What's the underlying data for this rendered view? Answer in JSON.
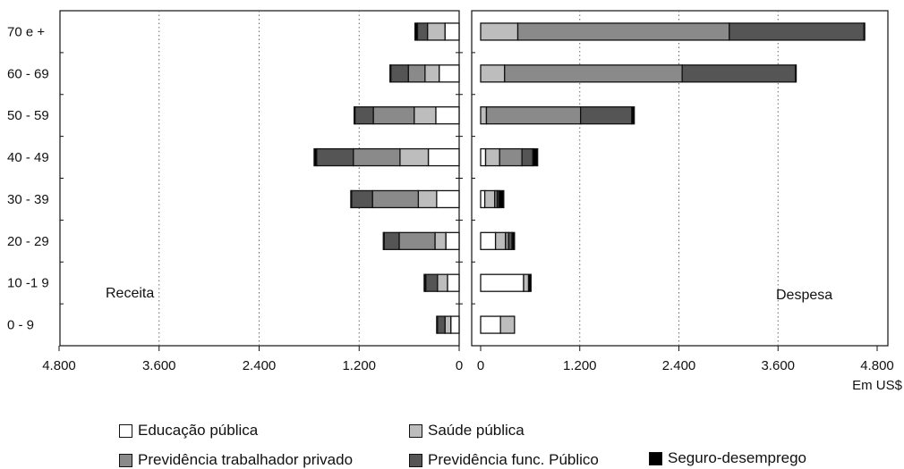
{
  "chart_data": {
    "type": "bar",
    "orientation": "horizontal",
    "stacked": true,
    "layout": "population pyramid (two mirrored panels)",
    "categories": [
      "70 e +",
      "60 - 69",
      "50 - 59",
      "40 - 49",
      "30 - 39",
      "20 - 29",
      "10 -1 9",
      "0 - 9"
    ],
    "panels": [
      {
        "label": "Receita",
        "direction": "leftward",
        "xlim": [
          0,
          4800
        ],
        "tick_labels": [
          "4.800",
          "3.600",
          "2.400",
          "1.200",
          "0"
        ],
        "series": [
          {
            "name": "Educação pública",
            "values": [
              170,
              240,
              280,
              370,
              270,
              160,
              140,
              100
            ]
          },
          {
            "name": "Saúde pública",
            "values": [
              210,
              170,
              260,
              340,
              220,
              130,
              120,
              70
            ]
          },
          {
            "name": "Previdência trabalhador privado",
            "values": [
              0,
              200,
              490,
              560,
              550,
              430,
              0,
              0
            ]
          },
          {
            "name": "Previdência func. Público",
            "values": [
              120,
              210,
              220,
              440,
              250,
              180,
              140,
              90
            ]
          },
          {
            "name": "Seguro-desemprego",
            "values": [
              30,
              10,
              10,
              30,
              10,
              10,
              20,
              10
            ]
          }
        ]
      },
      {
        "label": "Despesa",
        "direction": "rightward",
        "xlim": [
          0,
          4800
        ],
        "tick_labels": [
          "0",
          "1.200",
          "2.400",
          "3.600",
          "4.800"
        ],
        "unit_label": "Em US$",
        "series": [
          {
            "name": "Educação pública",
            "values": [
              0,
              0,
              0,
              60,
              50,
              180,
              520,
              240
            ]
          },
          {
            "name": "Saúde pública",
            "values": [
              450,
              290,
              70,
              170,
              120,
              120,
              60,
              170
            ]
          },
          {
            "name": "Previdência trabalhador privado",
            "values": [
              2560,
              2150,
              1140,
              270,
              30,
              40,
              0,
              0
            ]
          },
          {
            "name": "Previdência func. Público",
            "values": [
              1630,
              1370,
              620,
              130,
              20,
              40,
              0,
              0
            ]
          },
          {
            "name": "Seguro-desemprego",
            "values": [
              10,
              10,
              30,
              60,
              60,
              30,
              30,
              0
            ]
          }
        ]
      }
    ],
    "colors": {
      "Educação pública": "#ffffff",
      "Saúde pública": "#bdbdbd",
      "Previdência trabalhador privado": "#8a8a8a",
      "Previdência func. Público": "#555555",
      "Seguro-desemprego": "#000000"
    },
    "grid": "vertical dotted lines",
    "legend_position": "bottom"
  },
  "legend": [
    {
      "label": "Educação pública",
      "color": "#ffffff"
    },
    {
      "label": "Saúde pública",
      "color": "#bdbdbd"
    },
    {
      "label": "Previdência trabalhador privado",
      "color": "#8a8a8a"
    },
    {
      "label": "Previdência func. Público",
      "color": "#555555"
    },
    {
      "label": "Seguro-desemprego",
      "color": "#000000"
    }
  ]
}
